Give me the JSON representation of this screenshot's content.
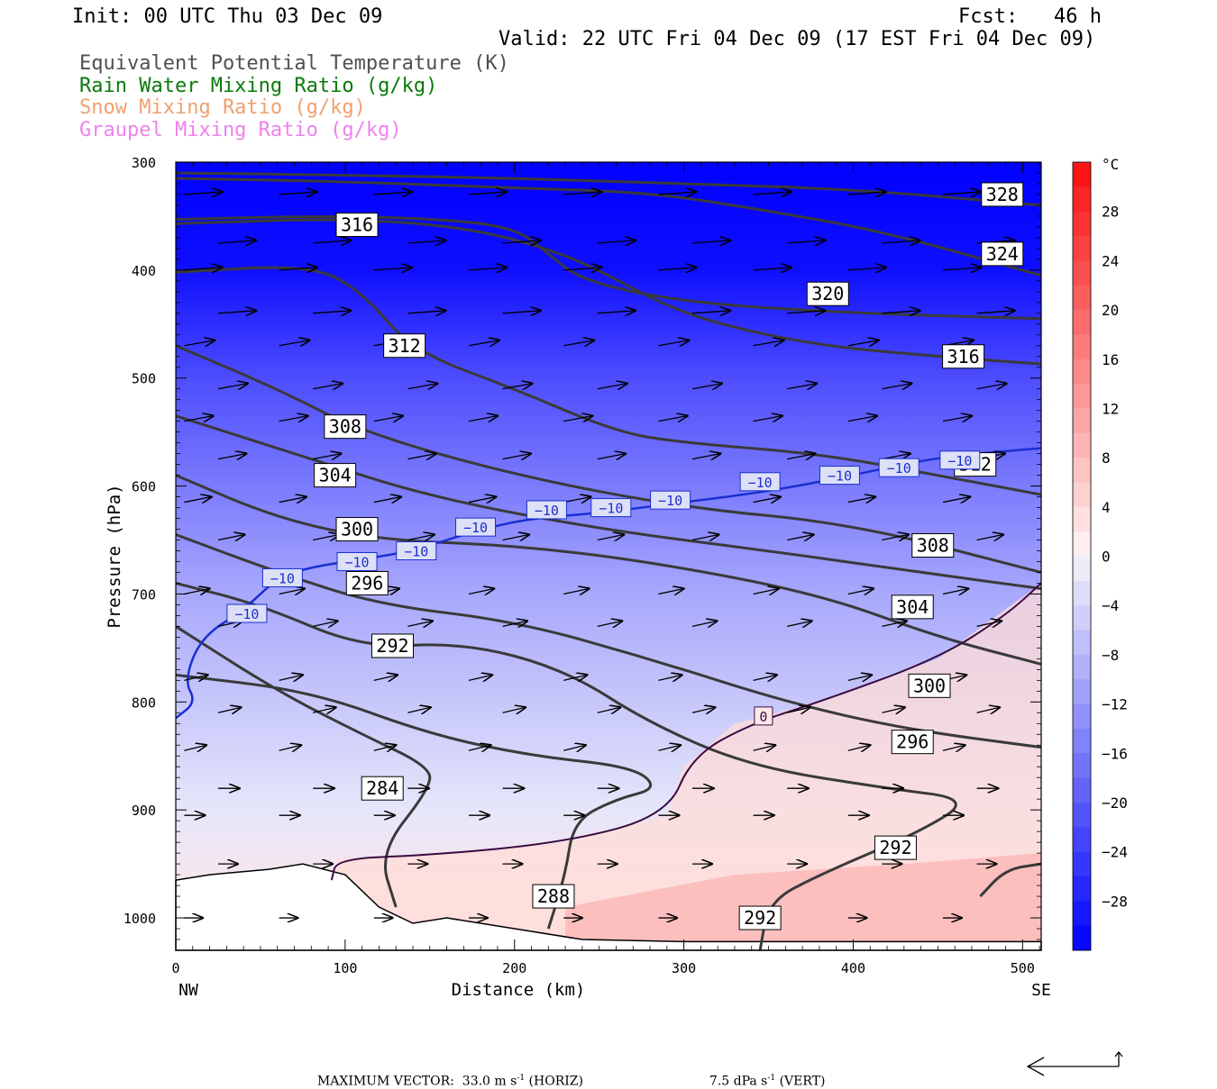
{
  "header": {
    "init": "Init: 00 UTC Thu 03 Dec 09",
    "fcst": "Fcst:   46 h",
    "valid": "Valid: 22 UTC Fri 04 Dec 09 (17 EST Fri 04 Dec 09)"
  },
  "legend": [
    {
      "label": "Equivalent Potential Temperature (K)",
      "color": "#505050"
    },
    {
      "label": "Rain Water Mixing Ratio (g/kg)",
      "color": "#0a7a0a"
    },
    {
      "label": "Snow Mixing Ratio (g/kg)",
      "color": "#f0a070"
    },
    {
      "label": "Graupel Mixing Ratio (g/kg)",
      "color": "#ee82ee"
    }
  ],
  "footer": {
    "max_vector": "MAXIMUM VECTOR:  33.0 m s",
    "horiz_unit": "-1",
    "horiz_tail": " (HORIZ)",
    "vert_value": "7.5 dPa s",
    "vert_unit": "-1",
    "vert_tail": " (VERT)"
  },
  "chart_data": {
    "type": "cross-section contour",
    "xlabel": "Distance (km)",
    "ylabel": "Pressure (hPa)",
    "x_ticks": [
      0,
      100,
      200,
      300,
      400,
      500
    ],
    "y_ticks": [
      300,
      400,
      500,
      600,
      700,
      800,
      900,
      1000
    ],
    "xlim": [
      0,
      511
    ],
    "ylim": [
      300,
      1030
    ],
    "y_axis": "pressure, inverted",
    "left_end_label": "NW",
    "right_end_label": "SE",
    "colorbar": {
      "unit": "°C",
      "ticks": [
        28,
        24,
        20,
        16,
        12,
        8,
        4,
        0,
        -4,
        -8,
        -12,
        -16,
        -20,
        -24,
        -28
      ],
      "range": [
        -32,
        32
      ]
    },
    "temperature_field_bands": [
      {
        "p": 300,
        "t": -32
      },
      {
        "p": 400,
        "t": -30
      },
      {
        "p": 500,
        "t": -22
      },
      {
        "p": 600,
        "t": -16
      },
      {
        "p": 700,
        "t": -10
      },
      {
        "p": 800,
        "t": -6
      },
      {
        "p": 900,
        "t": -2
      },
      {
        "p": 1000,
        "t": 2
      }
    ],
    "theta_e_contours": [
      {
        "label": "328",
        "pts": [
          [
            0,
            310
          ],
          [
            100,
            312
          ],
          [
            200,
            315
          ],
          [
            300,
            320
          ],
          [
            400,
            325
          ],
          [
            511,
            340
          ]
        ]
      },
      {
        "label": "324",
        "pts": [
          [
            0,
            315
          ],
          [
            100,
            318
          ],
          [
            200,
            324
          ],
          [
            280,
            328
          ],
          [
            350,
            345
          ],
          [
            420,
            365
          ],
          [
            511,
            405
          ]
        ]
      },
      {
        "label": "316",
        "pts": [
          [
            0,
            357
          ],
          [
            100,
            352
          ],
          [
            170,
            360
          ],
          [
            220,
            380
          ],
          [
            250,
            400
          ],
          [
            285,
            430
          ],
          [
            320,
            450
          ],
          [
            380,
            470
          ],
          [
            450,
            480
          ],
          [
            511,
            487
          ]
        ]
      },
      {
        "label": "320",
        "pts": [
          [
            0,
            353
          ],
          [
            80,
            350
          ],
          [
            150,
            352
          ],
          [
            200,
            360
          ],
          [
            220,
            385
          ],
          [
            240,
            410
          ],
          [
            300,
            430
          ],
          [
            400,
            440
          ],
          [
            511,
            445
          ]
        ]
      },
      {
        "label": "312",
        "pts": [
          [
            0,
            402
          ],
          [
            80,
            395
          ],
          [
            110,
            420
          ],
          [
            140,
            475
          ],
          [
            200,
            510
          ],
          [
            260,
            550
          ],
          [
            300,
            560
          ],
          [
            380,
            570
          ],
          [
            450,
            590
          ],
          [
            511,
            608
          ]
        ]
      },
      {
        "label": "308",
        "pts": [
          [
            0,
            470
          ],
          [
            60,
            510
          ],
          [
            110,
            550
          ],
          [
            200,
            590
          ],
          [
            300,
            620
          ],
          [
            400,
            635
          ],
          [
            511,
            680
          ]
        ]
      },
      {
        "label": "304",
        "pts": [
          [
            0,
            535
          ],
          [
            80,
            575
          ],
          [
            150,
            610
          ],
          [
            250,
            640
          ],
          [
            350,
            660
          ],
          [
            440,
            680
          ],
          [
            511,
            695
          ]
        ]
      },
      {
        "label": "300",
        "pts": [
          [
            0,
            590
          ],
          [
            60,
            630
          ],
          [
            120,
            650
          ],
          [
            200,
            655
          ],
          [
            280,
            670
          ],
          [
            380,
            700
          ],
          [
            450,
            740
          ],
          [
            511,
            765
          ]
        ]
      },
      {
        "label": "296",
        "pts": [
          [
            0,
            645
          ],
          [
            60,
            680
          ],
          [
            120,
            710
          ],
          [
            200,
            725
          ],
          [
            280,
            760
          ],
          [
            360,
            800
          ],
          [
            430,
            825
          ],
          [
            511,
            842
          ]
        ]
      },
      {
        "label": "292",
        "pts": [
          [
            0,
            690
          ],
          [
            50,
            710
          ],
          [
            110,
            750
          ],
          [
            170,
            745
          ],
          [
            230,
            770
          ],
          [
            280,
            820
          ],
          [
            340,
            860
          ],
          [
            420,
            880
          ],
          [
            470,
            890
          ],
          [
            440,
            920
          ],
          [
            380,
            960
          ],
          [
            350,
            985
          ],
          [
            345,
            1030
          ]
        ]
      },
      {
        "label": "284",
        "pts": [
          [
            0,
            730
          ],
          [
            60,
            790
          ],
          [
            110,
            830
          ],
          [
            150,
            860
          ],
          [
            150,
            880
          ],
          [
            120,
            940
          ],
          [
            130,
            990
          ]
        ]
      },
      {
        "label": "288",
        "pts": [
          [
            0,
            775
          ],
          [
            80,
            790
          ],
          [
            150,
            830
          ],
          [
            210,
            850
          ],
          [
            270,
            860
          ],
          [
            285,
            880
          ],
          [
            260,
            890
          ],
          [
            235,
            910
          ],
          [
            230,
            960
          ],
          [
            220,
            1010
          ]
        ]
      },
      {
        "label": "",
        "pts": [
          [
            475,
            980
          ],
          [
            490,
            955
          ],
          [
            511,
            950
          ]
        ]
      }
    ],
    "isotherm_minus10_labels": [
      "-10",
      "-10",
      "-10",
      "-10",
      "-10",
      "-10",
      "-10",
      "-10",
      "-10",
      "-10",
      "-10",
      "-10"
    ],
    "isotherm_zero_label": "0",
    "max_vector": {
      "horiz": "33.0 m s-1",
      "vert": "7.5 dPa s-1"
    }
  }
}
